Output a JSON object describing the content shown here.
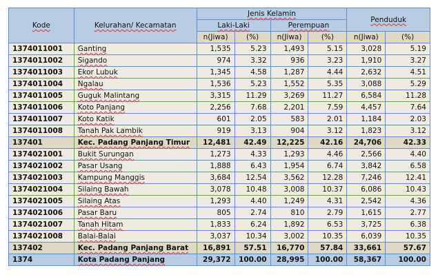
{
  "header": {
    "kode": "Kode",
    "kelurahan": "Kelurahan/ Kecamatan",
    "jenis_kelamin": "Jenis Kelamin",
    "laki": "Laki-Laki",
    "perempuan": "Perempuan",
    "penduduk": "Penduduk",
    "n": "n(Jiwa)",
    "pct": "(%)"
  },
  "rows": [
    {
      "type": "kel",
      "kode": "1374011001",
      "nama": "Ganting",
      "l_n": "1,535",
      "l_p": "5.23",
      "p_n": "1,493",
      "p_p": "5.15",
      "t_n": "3,028",
      "t_p": "5.19"
    },
    {
      "type": "kel",
      "kode": "1374011002",
      "nama": "Sigando",
      "l_n": "974",
      "l_p": "3.32",
      "p_n": "936",
      "p_p": "3.23",
      "t_n": "1,910",
      "t_p": "3.27"
    },
    {
      "type": "kel",
      "kode": "1374011003",
      "nama": "Ekor Lubuk",
      "l_n": "1,345",
      "l_p": "4.58",
      "p_n": "1,287",
      "p_p": "4.44",
      "t_n": "2,632",
      "t_p": "4.51"
    },
    {
      "type": "kel",
      "kode": "1374011004",
      "nama": "Ngalau",
      "l_n": "1,536",
      "l_p": "5.23",
      "p_n": "1,552",
      "p_p": "5.35",
      "t_n": "3,088",
      "t_p": "5.29"
    },
    {
      "type": "kel",
      "kode": "1374011005",
      "nama": "Guguk Malintang",
      "l_n": "3,315",
      "l_p": "11.29",
      "p_n": "3,269",
      "p_p": "11.27",
      "t_n": "6,584",
      "t_p": "11.28"
    },
    {
      "type": "kel",
      "kode": "1374011006",
      "nama": "Koto Panjang",
      "l_n": "2,256",
      "l_p": "7.68",
      "p_n": "2,201",
      "p_p": "7.59",
      "t_n": "4,457",
      "t_p": "7.64"
    },
    {
      "type": "kel",
      "kode": "1374011007",
      "nama": "Koto Katik",
      "l_n": "601",
      "l_p": "2.05",
      "p_n": "583",
      "p_p": "2.01",
      "t_n": "1,184",
      "t_p": "2.03"
    },
    {
      "type": "kel",
      "kode": "1374011008",
      "nama": "Tanah Pak Lambik",
      "l_n": "919",
      "l_p": "3.13",
      "p_n": "904",
      "p_p": "3.12",
      "t_n": "1,823",
      "t_p": "3.12"
    },
    {
      "type": "kec",
      "kode": "137401",
      "nama": "Kec. Padang Panjang Timur",
      "l_n": "12,481",
      "l_p": "42.49",
      "p_n": "12,225",
      "p_p": "42.16",
      "t_n": "24,706",
      "t_p": "42.33"
    },
    {
      "type": "kel",
      "kode": "1374021001",
      "nama": "Bukit Surungan",
      "l_n": "1,273",
      "l_p": "4.33",
      "p_n": "1,293",
      "p_p": "4.46",
      "t_n": "2,566",
      "t_p": "4.40"
    },
    {
      "type": "kel",
      "kode": "1374021002",
      "nama": "Pasar Usang",
      "l_n": "1,888",
      "l_p": "6.43",
      "p_n": "1,954",
      "p_p": "6.74",
      "t_n": "3,842",
      "t_p": "6.58"
    },
    {
      "type": "kel",
      "kode": "1374021003",
      "nama": "Kampung Manggis",
      "l_n": "3,684",
      "l_p": "12.54",
      "p_n": "3,562",
      "p_p": "12.28",
      "t_n": "7,246",
      "t_p": "12.41"
    },
    {
      "type": "kel",
      "kode": "1374021004",
      "nama": "Silaing Bawah",
      "l_n": "3,078",
      "l_p": "10.48",
      "p_n": "3,008",
      "p_p": "10.37",
      "t_n": "6,086",
      "t_p": "10.43"
    },
    {
      "type": "kel",
      "kode": "1374021005",
      "nama": "Silaing Atas",
      "l_n": "1,293",
      "l_p": "4.40",
      "p_n": "1,249",
      "p_p": "4.31",
      "t_n": "2,542",
      "t_p": "4.36"
    },
    {
      "type": "kel",
      "kode": "1374021006",
      "nama": "Pasar Baru",
      "l_n": "805",
      "l_p": "2.74",
      "p_n": "810",
      "p_p": "2.79",
      "t_n": "1,615",
      "t_p": "2.77"
    },
    {
      "type": "kel",
      "kode": "1374021007",
      "nama": "Tanah Hitam",
      "l_n": "1,833",
      "l_p": "6.24",
      "p_n": "1,892",
      "p_p": "6.53",
      "t_n": "3,725",
      "t_p": "6.38"
    },
    {
      "type": "kel",
      "kode": "1374021008",
      "nama": "Balai-Balai",
      "l_n": "3,037",
      "l_p": "10.34",
      "p_n": "3,002",
      "p_p": "10.35",
      "t_n": "6,039",
      "t_p": "10.35"
    },
    {
      "type": "kec",
      "kode": "137402",
      "nama": "Kec. Padang Panjang Barat",
      "l_n": "16,891",
      "l_p": "57.51",
      "p_n": "16,770",
      "p_p": "57.84",
      "t_n": "33,661",
      "t_p": "57.67"
    },
    {
      "type": "tot",
      "kode": "1374",
      "nama": "Kota Padang Panjang",
      "l_n": "29,372",
      "l_p": "100.00",
      "p_n": "28,995",
      "p_p": "100.00",
      "t_n": "58,367",
      "t_p": "100.00"
    }
  ]
}
